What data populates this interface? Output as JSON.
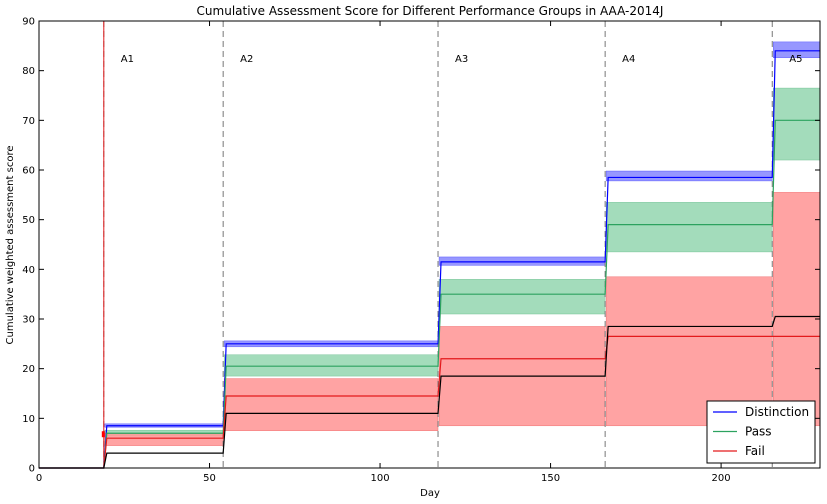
{
  "chart_data": {
    "type": "line",
    "title": "Cumulative Assessment Score for Different Performance Groups in AAA-2014J",
    "xlabel": "Day",
    "ylabel": "Cumulative weighted assessment score",
    "xlim": [
      0,
      229
    ],
    "ylim": [
      0,
      90
    ],
    "xticks": [
      0,
      50,
      100,
      150,
      200
    ],
    "yticks": [
      0,
      10,
      20,
      30,
      40,
      50,
      60,
      70,
      80,
      90
    ],
    "grid": false,
    "legend_position": "bottom-right",
    "assessment_days": [
      19,
      54,
      117,
      166,
      215
    ],
    "assessment_labels": [
      "A1",
      "A2",
      "A3",
      "A4",
      "A5"
    ],
    "series": [
      {
        "name": "Distinction",
        "color": "#0000ff",
        "band_color": "#8c8cff",
        "steps": [
          0,
          8.5,
          25,
          41.5,
          58.5,
          84
        ],
        "lower": [
          0,
          8.2,
          24.4,
          40.8,
          57.8,
          82.6
        ],
        "upper": [
          0,
          8.9,
          25.6,
          42.5,
          59.8,
          85.8
        ]
      },
      {
        "name": "Pass",
        "color": "#2ca25f",
        "band_color": "#99d8b4",
        "steps": [
          0,
          7,
          20.5,
          35,
          49,
          70
        ],
        "lower": [
          0,
          6.5,
          18.5,
          31,
          43.5,
          62
        ],
        "upper": [
          0,
          7.6,
          22.8,
          38,
          53.5,
          76.5
        ]
      },
      {
        "name": "Fail",
        "color": "#e31a1c",
        "band_color": "#ff9999",
        "steps": [
          0,
          6,
          14.5,
          22,
          26.5,
          26.5
        ],
        "lower": [
          0,
          4.5,
          7.5,
          8.5,
          8.5,
          8.5
        ],
        "upper": [
          0,
          7,
          18,
          28.5,
          38.5,
          55.5
        ]
      },
      {
        "name": "",
        "color": "#000000",
        "steps": [
          0,
          3,
          11,
          18.5,
          28.5,
          30.5
        ]
      }
    ],
    "fail_marker": {
      "x": 19,
      "y": 6.8
    },
    "highlight_line_x": 19
  }
}
